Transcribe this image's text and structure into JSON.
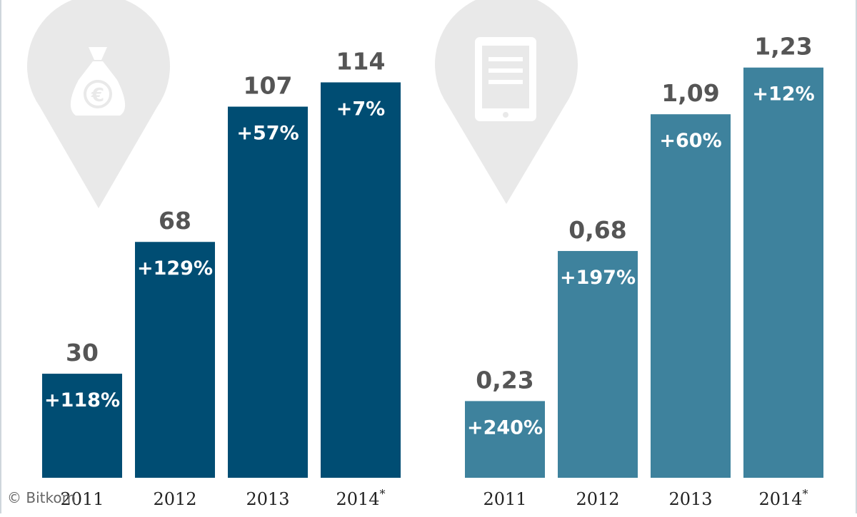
{
  "colors": {
    "left_bars": "#004d73",
    "right_bars": "#3e829d",
    "value_text": "#555555",
    "pin": "#e9e9e9"
  },
  "icons": [
    "money-bag-euro-icon",
    "tablet-icon"
  ],
  "copyright": "© Bitkom",
  "chart_data": [
    {
      "type": "bar",
      "categories": [
        "2011",
        "2012",
        "2013",
        "2014*"
      ],
      "values": [
        30,
        68,
        107,
        114
      ],
      "value_labels": [
        "30",
        "68",
        "107",
        "114"
      ],
      "change_labels": [
        "+118%",
        "+129%",
        "+57%",
        "+7%"
      ],
      "ylim": [
        0,
        125
      ]
    },
    {
      "type": "bar",
      "categories": [
        "2011",
        "2012",
        "2013",
        "2014*"
      ],
      "values": [
        0.23,
        0.68,
        1.09,
        1.23
      ],
      "value_labels": [
        "0,23",
        "0,68",
        "1,09",
        "1,23"
      ],
      "change_labels": [
        "+240%",
        "+197%",
        "+60%",
        "+12%"
      ],
      "ylim": [
        0,
        1.3
      ]
    }
  ]
}
